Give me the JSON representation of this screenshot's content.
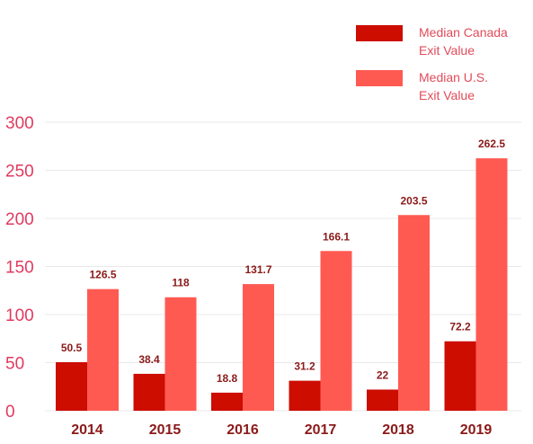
{
  "chart_data": {
    "type": "bar",
    "title": "",
    "xlabel": "",
    "ylabel": "",
    "categories": [
      "2014",
      "2015",
      "2016",
      "2017",
      "2018",
      "2019"
    ],
    "series": [
      {
        "name": "Median Canada Exit Value",
        "values": [
          50.5,
          38.4,
          18.8,
          31.2,
          22,
          72.2
        ],
        "labels": [
          "50.5",
          "38.4",
          "18.8",
          "31.2",
          "22",
          "72.2"
        ],
        "color": "#cc0d00"
      },
      {
        "name": "Median U.S. Exit Value",
        "values": [
          126.5,
          118,
          131.7,
          166.1,
          203.5,
          262.5
        ],
        "labels": [
          "126.5",
          "118",
          "131.7",
          "166.1",
          "203.5",
          "262.5"
        ],
        "color": "#ff5a52"
      }
    ],
    "ylim": [
      0,
      300
    ],
    "yticks": [
      "0",
      "50",
      "100",
      "150",
      "200",
      "250",
      "300"
    ],
    "grid": true,
    "legend_position": "top-right"
  },
  "legend": {
    "items": [
      {
        "line1": "Median Canada",
        "line2": "Exit Value",
        "color": "#cc0d00"
      },
      {
        "line1": "Median U.S.",
        "line2": "Exit Value",
        "color": "#ff5a52"
      }
    ]
  }
}
